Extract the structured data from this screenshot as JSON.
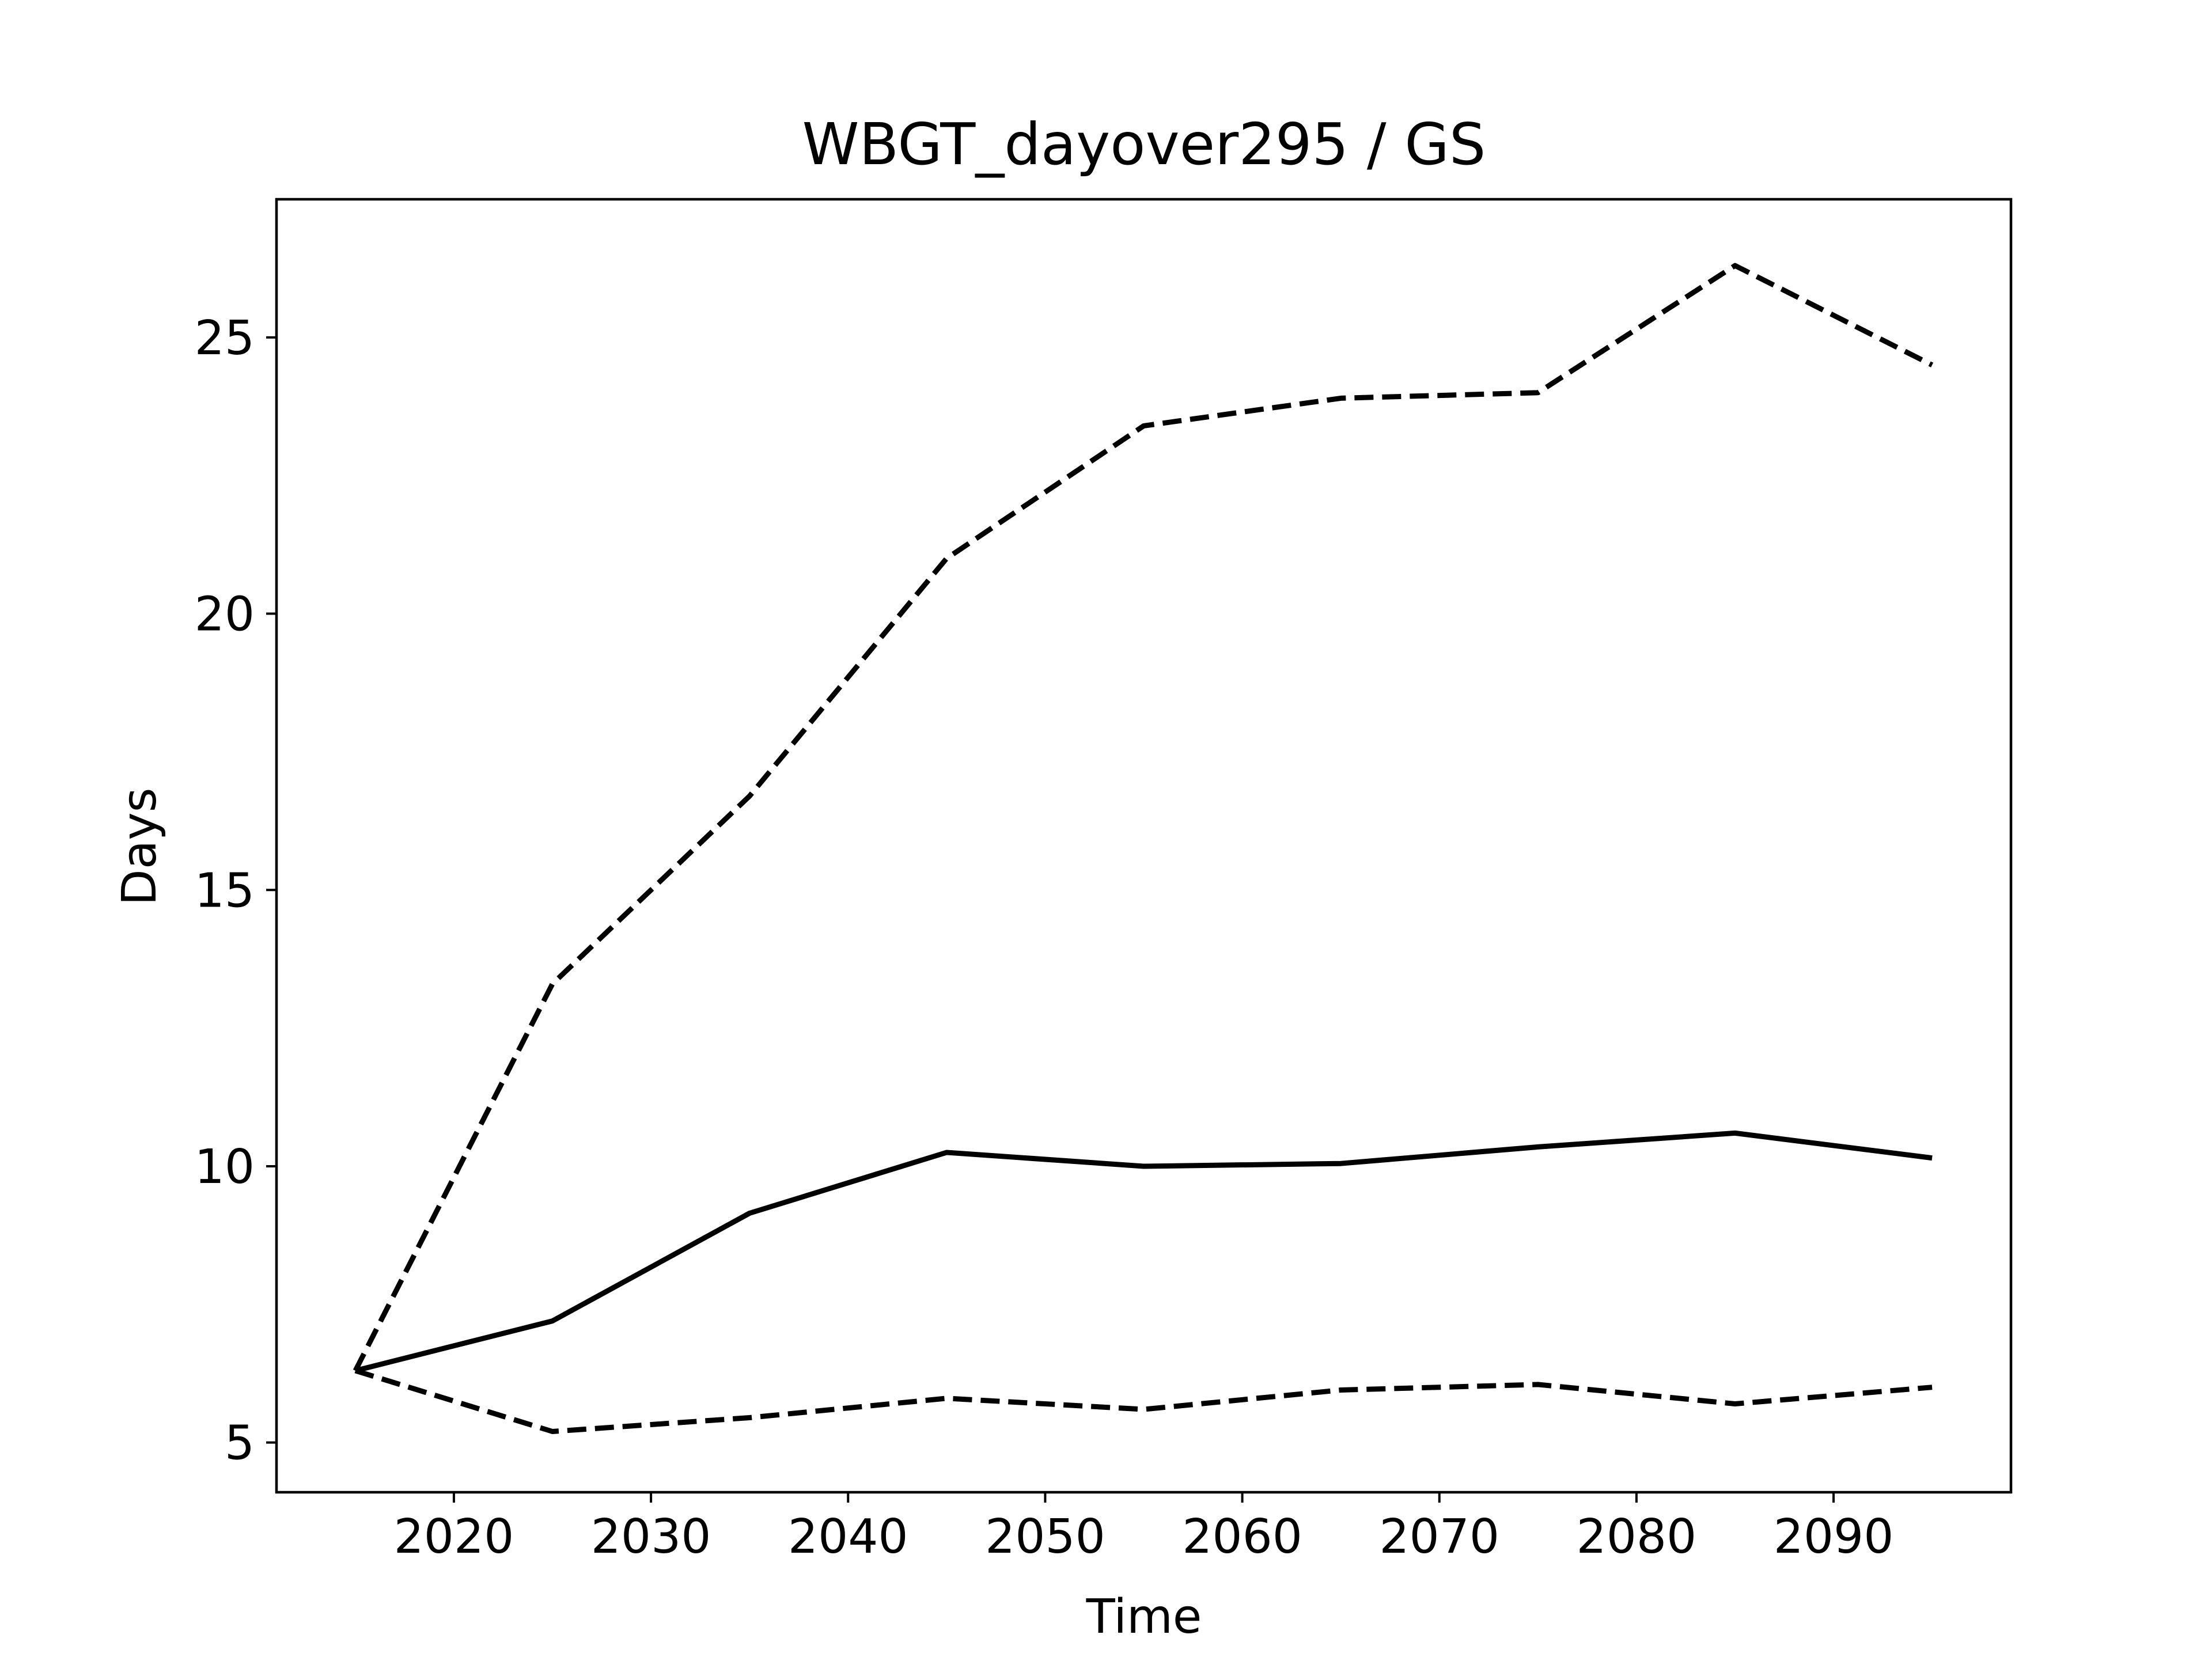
{
  "chart_data": {
    "type": "line",
    "title": "WBGT_dayover295 / GS",
    "xlabel": "Time",
    "ylabel": "Days",
    "xlim": [
      2011,
      2099
    ],
    "ylim": [
      4.1,
      27.5
    ],
    "xticks": [
      2020,
      2030,
      2040,
      2050,
      2060,
      2070,
      2080,
      2090
    ],
    "yticks": [
      5,
      10,
      15,
      20,
      25
    ],
    "grid": false,
    "legend": "none",
    "x": [
      2015,
      2025,
      2035,
      2045,
      2055,
      2065,
      2075,
      2085,
      2095
    ],
    "series": [
      {
        "style": "dashed",
        "color": "#000000",
        "values": [
          6.3,
          13.3,
          16.7,
          21.0,
          23.4,
          23.9,
          24.0,
          26.3,
          24.5
        ]
      },
      {
        "style": "solid",
        "color": "#000000",
        "values": [
          6.3,
          7.2,
          9.15,
          10.25,
          10.0,
          10.05,
          10.35,
          10.6,
          10.15
        ]
      },
      {
        "style": "dashed",
        "color": "#000000",
        "values": [
          6.3,
          5.2,
          5.45,
          5.8,
          5.6,
          5.95,
          6.05,
          5.7,
          6.0
        ]
      }
    ]
  }
}
